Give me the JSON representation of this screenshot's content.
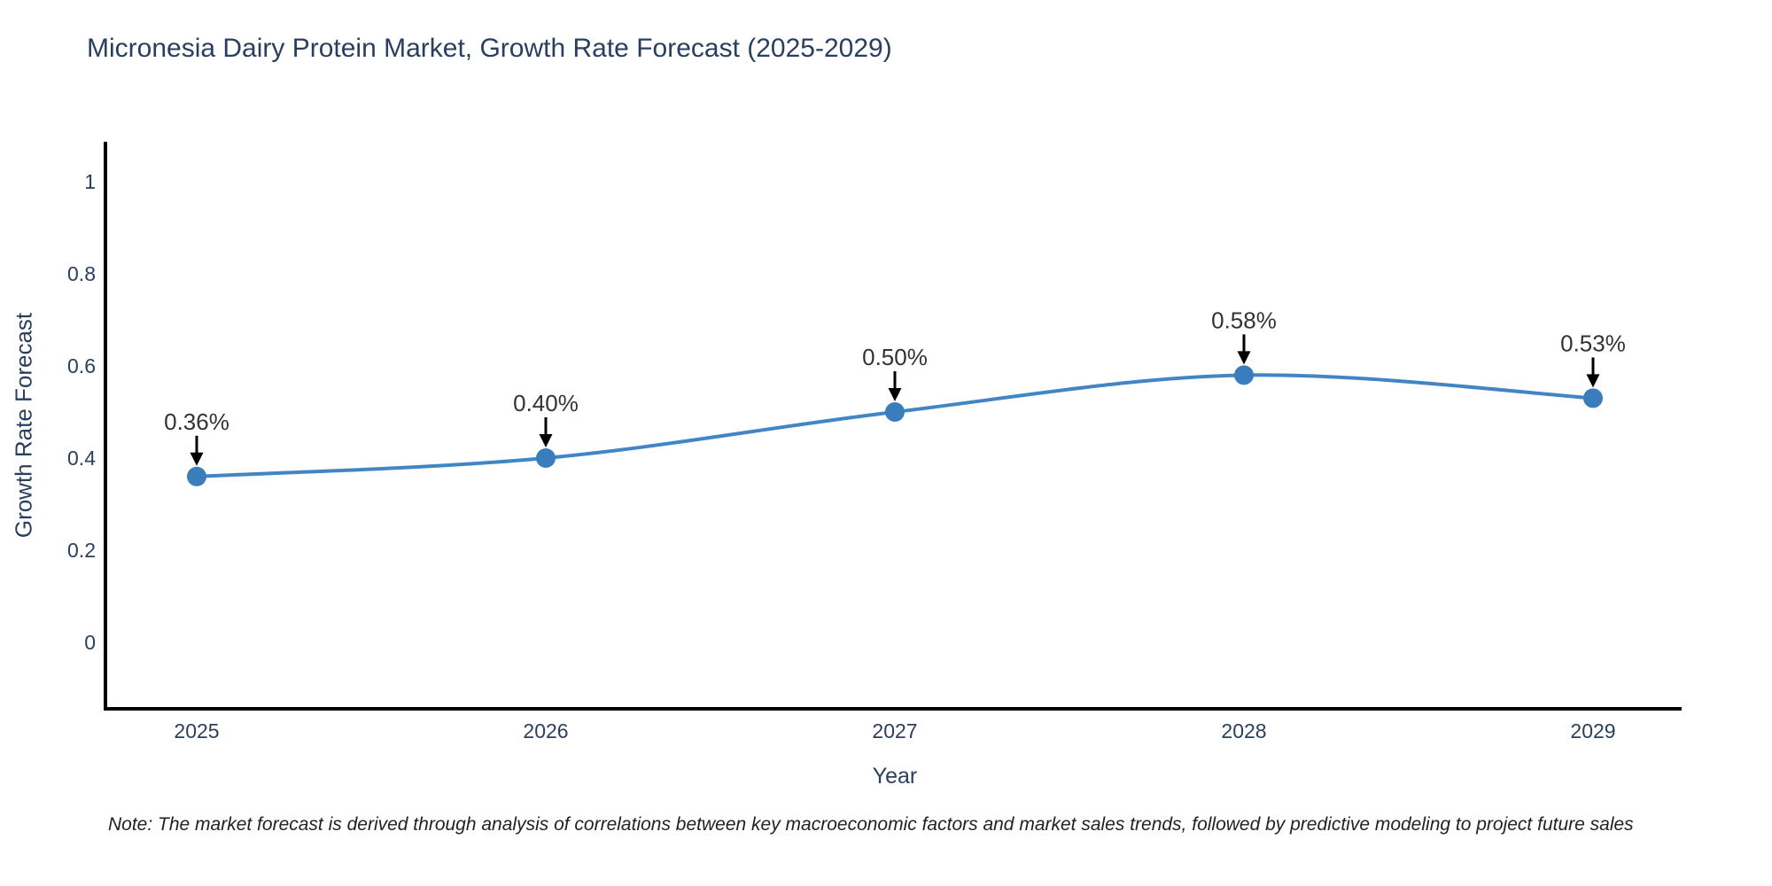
{
  "title": "Micronesia Dairy Protein Market, Growth Rate Forecast (2025-2029)",
  "note": "Note: The market forecast is derived through analysis of correlations between key macroeconomic factors and market sales trends, followed by predictive modeling to project future sales",
  "xaxis": {
    "title": "Year",
    "tick_labels": [
      "2025",
      "2026",
      "2027",
      "2028",
      "2029"
    ]
  },
  "yaxis": {
    "title": "Growth Rate Forecast",
    "ticks": [
      {
        "label": "0",
        "value": 0
      },
      {
        "label": "0.2",
        "value": 0.2
      },
      {
        "label": "0.4",
        "value": 0.4
      },
      {
        "label": "0.6",
        "value": 0.6
      },
      {
        "label": "0.8",
        "value": 0.8
      },
      {
        "label": "1",
        "value": 1
      }
    ]
  },
  "chart_data": {
    "type": "line",
    "line_shape": "spline",
    "title": "Micronesia Dairy Protein Market, Growth Rate Forecast (2025-2029)",
    "xlabel": "Year",
    "ylabel": "Growth Rate Forecast",
    "categories": [
      2025,
      2026,
      2027,
      2028,
      2029
    ],
    "series": [
      {
        "name": "Growth Rate Forecast",
        "values": [
          0.36,
          0.4,
          0.5,
          0.58,
          0.53
        ]
      }
    ],
    "point_labels": [
      "0.36%",
      "0.40%",
      "0.50%",
      "0.58%",
      "0.53%"
    ],
    "ylim": [
      -0.15,
      1.09
    ],
    "grid": false,
    "legend": false,
    "markers": true,
    "colors": {
      "line": "#4185c5",
      "marker": "#3a7dbd",
      "axis": "#000000",
      "title_text": "#2a3f5f",
      "tick_text": "#2a3f5f",
      "annotation_text": "#333333",
      "arrow": "#000000",
      "note_text": "#222222",
      "background": "#ffffff"
    }
  }
}
